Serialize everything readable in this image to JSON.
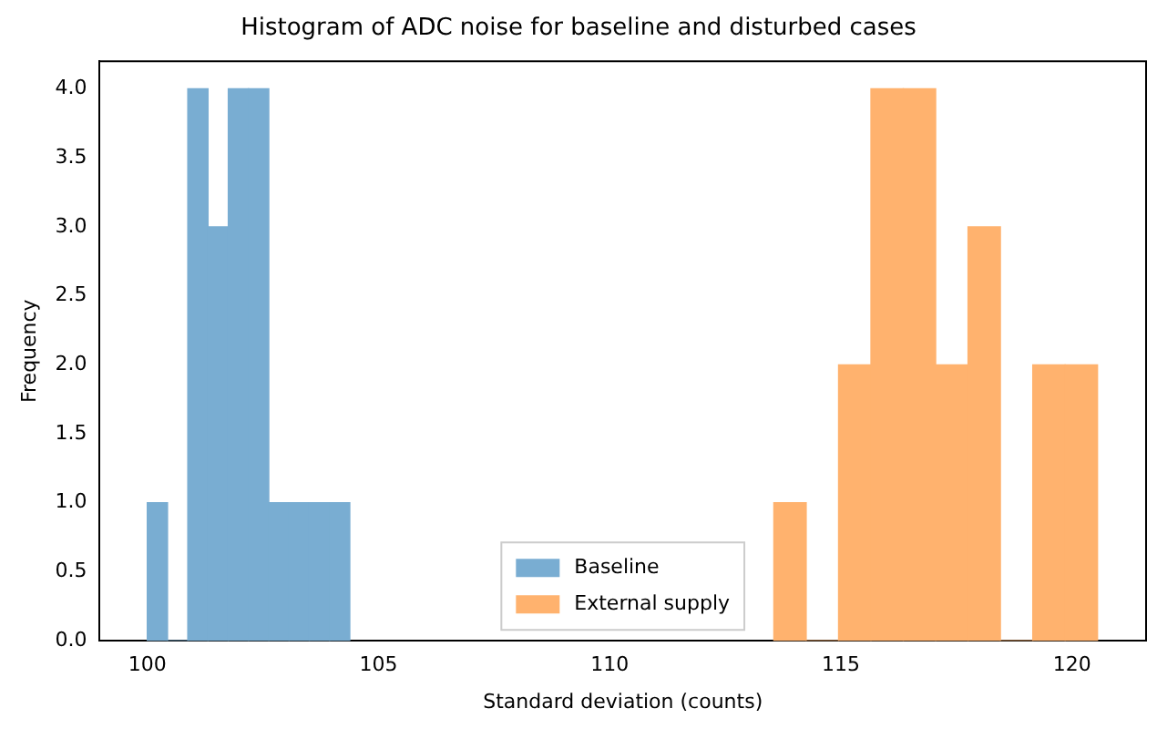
{
  "chart_data": {
    "type": "histogram",
    "title": "Histogram of ADC noise for baseline and disturbed cases",
    "xlabel": "Standard deviation (counts)",
    "ylabel": "Frequency",
    "bins": [
      100.0,
      100.438,
      100.876,
      101.314,
      101.752,
      102.19,
      102.628,
      103.066,
      103.504,
      103.942,
      104.38,
      113.55,
      114.25,
      114.95,
      115.65,
      116.35,
      117.05,
      117.75,
      118.45,
      119.15,
      119.85,
      120.55
    ],
    "series": [
      {
        "name": "Baseline",
        "color": "#79add2",
        "values": [
          1,
          0,
          4,
          3,
          4,
          4,
          1,
          1,
          1,
          1,
          null,
          null,
          null,
          null,
          null,
          null,
          null,
          null,
          null,
          null,
          null
        ]
      },
      {
        "name": "External supply",
        "color": "#ffb26e",
        "values": [
          null,
          null,
          null,
          null,
          null,
          null,
          null,
          null,
          null,
          null,
          null,
          1,
          0,
          2,
          4,
          4,
          2,
          3,
          0,
          2,
          2
        ]
      }
    ],
    "xlim": [
      98.97,
      121.6
    ],
    "xticks": [
      100,
      105,
      110,
      115,
      120
    ],
    "ylim": [
      0,
      4.2
    ],
    "yticks": [
      {
        "value": 0,
        "label": "0.0"
      },
      {
        "value": 0.5,
        "label": "0.5"
      },
      {
        "value": 1,
        "label": "1.0"
      },
      {
        "value": 1.5,
        "label": "1.5"
      },
      {
        "value": 2,
        "label": "2.0"
      },
      {
        "value": 2.5,
        "label": "2.5"
      },
      {
        "value": 3,
        "label": "3.0"
      },
      {
        "value": 3.5,
        "label": "3.5"
      },
      {
        "value": 4,
        "label": "4.0"
      }
    ],
    "grid": false,
    "legend": "bottom"
  }
}
